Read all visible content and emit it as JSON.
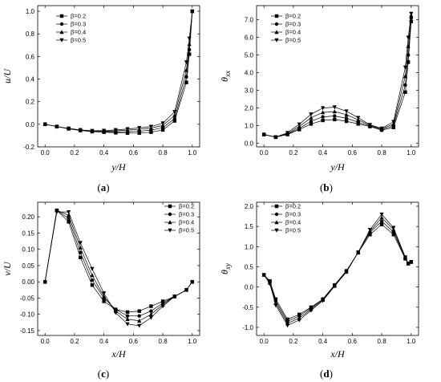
{
  "chart_data": [
    {
      "type": "line",
      "caption": "(a)",
      "xlabel": "y/H",
      "ylabel": "u/U",
      "xlim": [
        -0.05,
        1.05
      ],
      "ylim": [
        -0.2,
        1.05
      ],
      "xticks": [
        0.0,
        0.2,
        0.4,
        0.6,
        0.8,
        1.0
      ],
      "xtick_labels": [
        "0.0",
        "0.2",
        "0.4",
        "0.6",
        "0.8",
        "1.0"
      ],
      "yticks": [
        -0.2,
        0.0,
        0.2,
        0.4,
        0.6,
        0.8,
        1.0
      ],
      "ytick_labels": [
        "-0.2",
        "0.0",
        "0.2",
        "0.4",
        "0.6",
        "0.8",
        "1.0"
      ],
      "legend_position": "top-left",
      "x": [
        0.0,
        0.08,
        0.16,
        0.24,
        0.32,
        0.4,
        0.48,
        0.56,
        0.64,
        0.72,
        0.8,
        0.88,
        0.96,
        0.98,
        1.0
      ],
      "series": [
        {
          "name": "β=0.2",
          "marker": "square",
          "values": [
            0.0,
            -0.02,
            -0.04,
            -0.055,
            -0.065,
            -0.07,
            -0.075,
            -0.078,
            -0.078,
            -0.07,
            -0.05,
            0.03,
            0.37,
            0.62,
            1.0
          ]
        },
        {
          "name": "β=0.3",
          "marker": "circle",
          "values": [
            0.0,
            -0.02,
            -0.04,
            -0.055,
            -0.063,
            -0.066,
            -0.067,
            -0.066,
            -0.062,
            -0.052,
            -0.03,
            0.05,
            0.42,
            0.66,
            1.0
          ]
        },
        {
          "name": "β=0.4",
          "marker": "triangle-up",
          "values": [
            0.0,
            -0.02,
            -0.038,
            -0.052,
            -0.06,
            -0.062,
            -0.058,
            -0.052,
            -0.045,
            -0.034,
            -0.01,
            0.08,
            0.48,
            0.71,
            1.0
          ]
        },
        {
          "name": "β=0.5",
          "marker": "triangle-down",
          "values": [
            0.0,
            -0.02,
            -0.036,
            -0.05,
            -0.057,
            -0.056,
            -0.05,
            -0.042,
            -0.032,
            -0.02,
            0.01,
            0.11,
            0.55,
            0.76,
            1.0
          ]
        }
      ]
    },
    {
      "type": "line",
      "caption": "(b)",
      "xlabel": "y/H",
      "ylabel": "θxx",
      "ylabel_main": "θ",
      "ylabel_sub": "xx",
      "xlim": [
        -0.05,
        1.05
      ],
      "ylim": [
        -0.2,
        7.8
      ],
      "xticks": [
        0.0,
        0.2,
        0.4,
        0.6,
        0.8,
        1.0
      ],
      "xtick_labels": [
        "0.0",
        "0.2",
        "0.4",
        "0.6",
        "0.8",
        "1.0"
      ],
      "yticks": [
        0.0,
        1.0,
        2.0,
        3.0,
        4.0,
        5.0,
        6.0,
        7.0
      ],
      "ytick_labels": [
        "0.0",
        "1.0",
        "2.0",
        "3.0",
        "4.0",
        "5.0",
        "6.0",
        "7.0"
      ],
      "legend_position": "top-left",
      "x": [
        0.0,
        0.08,
        0.16,
        0.24,
        0.32,
        0.4,
        0.48,
        0.56,
        0.64,
        0.72,
        0.8,
        0.88,
        0.96,
        0.98,
        1.0
      ],
      "series": [
        {
          "name": "β=0.2",
          "marker": "square",
          "values": [
            0.5,
            0.35,
            0.5,
            0.78,
            1.1,
            1.3,
            1.35,
            1.25,
            1.1,
            0.95,
            0.75,
            0.9,
            2.9,
            4.6,
            6.9
          ]
        },
        {
          "name": "β=0.3",
          "marker": "circle",
          "values": [
            0.5,
            0.35,
            0.52,
            0.85,
            1.25,
            1.5,
            1.55,
            1.42,
            1.2,
            0.98,
            0.78,
            1.0,
            3.3,
            5.0,
            7.1
          ]
        },
        {
          "name": "β=0.4",
          "marker": "triangle-up",
          "values": [
            0.5,
            0.35,
            0.55,
            0.95,
            1.45,
            1.75,
            1.8,
            1.62,
            1.33,
            1.02,
            0.82,
            1.1,
            3.8,
            5.5,
            7.25
          ]
        },
        {
          "name": "β=0.5",
          "marker": "triangle-down",
          "values": [
            0.5,
            0.36,
            0.6,
            1.08,
            1.65,
            2.0,
            2.05,
            1.82,
            1.45,
            1.05,
            0.85,
            1.22,
            4.3,
            6.0,
            7.35
          ]
        }
      ]
    },
    {
      "type": "line",
      "caption": "(c)",
      "xlabel": "x/H",
      "ylabel": "v/U",
      "xlim": [
        -0.05,
        1.05
      ],
      "ylim": [
        -0.165,
        0.245
      ],
      "xticks": [
        0.0,
        0.2,
        0.4,
        0.6,
        0.8,
        1.0
      ],
      "xtick_labels": [
        "0.0",
        "0.2",
        "0.4",
        "0.6",
        "0.8",
        "1.0"
      ],
      "yticks": [
        -0.15,
        -0.1,
        -0.05,
        0.0,
        0.05,
        0.1,
        0.15,
        0.2
      ],
      "ytick_labels": [
        "-0.15",
        "-0.10",
        "-0.05",
        "0.00",
        "0.05",
        "0.10",
        "0.15",
        "0.20"
      ],
      "legend_position": "top-right",
      "x": [
        0.0,
        0.08,
        0.16,
        0.24,
        0.32,
        0.4,
        0.48,
        0.56,
        0.64,
        0.72,
        0.8,
        0.88,
        0.96,
        1.0
      ],
      "series": [
        {
          "name": "β=0.2",
          "marker": "square",
          "values": [
            0.0,
            0.22,
            0.185,
            0.075,
            -0.01,
            -0.06,
            -0.085,
            -0.093,
            -0.09,
            -0.075,
            -0.06,
            -0.045,
            -0.025,
            0.0
          ]
        },
        {
          "name": "β=0.3",
          "marker": "circle",
          "values": [
            0.0,
            0.22,
            0.195,
            0.09,
            0.005,
            -0.05,
            -0.085,
            -0.105,
            -0.105,
            -0.09,
            -0.065,
            -0.045,
            -0.025,
            0.0
          ]
        },
        {
          "name": "β=0.4",
          "marker": "triangle-up",
          "values": [
            0.0,
            0.22,
            0.205,
            0.105,
            0.02,
            -0.045,
            -0.09,
            -0.115,
            -0.12,
            -0.1,
            -0.07,
            -0.045,
            -0.025,
            0.0
          ]
        },
        {
          "name": "β=0.5",
          "marker": "triangle-down",
          "values": [
            0.0,
            0.215,
            0.215,
            0.12,
            0.04,
            -0.035,
            -0.095,
            -0.13,
            -0.135,
            -0.11,
            -0.075,
            -0.045,
            -0.025,
            0.0
          ]
        }
      ]
    },
    {
      "type": "line",
      "caption": "(d)",
      "xlabel": "x/H",
      "ylabel": "θxy",
      "ylabel_main": "θ",
      "ylabel_sub": "xy",
      "xlim": [
        -0.05,
        1.05
      ],
      "ylim": [
        -1.2,
        2.1
      ],
      "xticks": [
        0.0,
        0.2,
        0.4,
        0.6,
        0.8,
        1.0
      ],
      "xtick_labels": [
        "0.0",
        "0.2",
        "0.4",
        "0.6",
        "0.8",
        "1.0"
      ],
      "yticks": [
        -1.0,
        -0.5,
        0.0,
        0.5,
        1.0,
        1.5,
        2.0
      ],
      "ytick_labels": [
        "-1.0",
        "-0.5",
        "0.0",
        "0.5",
        "1.0",
        "1.5",
        "2.0"
      ],
      "legend_position": "top-left",
      "x": [
        0.0,
        0.04,
        0.08,
        0.16,
        0.24,
        0.32,
        0.4,
        0.48,
        0.56,
        0.64,
        0.72,
        0.8,
        0.88,
        0.96,
        0.98,
        1.0
      ],
      "series": [
        {
          "name": "β=0.2",
          "marker": "square",
          "values": [
            0.3,
            0.15,
            -0.3,
            -0.8,
            -0.68,
            -0.5,
            -0.3,
            0.05,
            0.4,
            0.85,
            1.3,
            1.55,
            1.3,
            0.7,
            0.58,
            0.62
          ]
        },
        {
          "name": "β=0.3",
          "marker": "circle",
          "values": [
            0.3,
            0.12,
            -0.35,
            -0.85,
            -0.72,
            -0.52,
            -0.3,
            0.05,
            0.4,
            0.86,
            1.35,
            1.63,
            1.36,
            0.72,
            0.58,
            0.62
          ]
        },
        {
          "name": "β=0.4",
          "marker": "triangle-up",
          "values": [
            0.3,
            0.1,
            -0.4,
            -0.9,
            -0.77,
            -0.55,
            -0.32,
            0.03,
            0.38,
            0.86,
            1.38,
            1.72,
            1.42,
            0.73,
            0.58,
            0.62
          ]
        },
        {
          "name": "β=0.5",
          "marker": "triangle-down",
          "values": [
            0.3,
            0.08,
            -0.45,
            -0.95,
            -0.82,
            -0.58,
            -0.34,
            0.02,
            0.37,
            0.86,
            1.42,
            1.8,
            1.47,
            0.74,
            0.58,
            0.62
          ]
        }
      ]
    }
  ]
}
